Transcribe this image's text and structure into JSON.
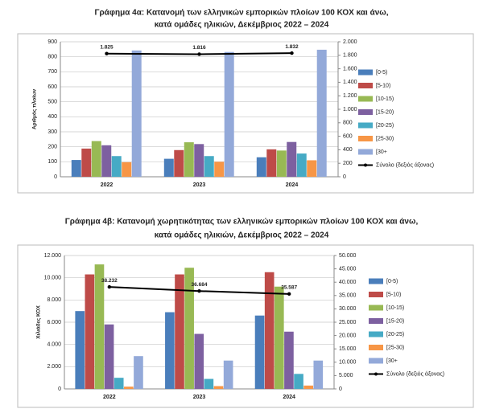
{
  "chart_data": [
    {
      "type": "bar",
      "title": "Γράφημα 4α: Κατανομή των ελληνικών εμπορικών πλοίων 100 ΚΟΧ και άνω,",
      "subtitle": "κατά ομάδες ηλικιών, Δεκέμβριος 2022 – 2024",
      "y_label": "Αριθμός πλοίων",
      "categories": [
        "2022",
        "2023",
        "2024"
      ],
      "ylim": [
        0,
        900
      ],
      "yticks": [
        0,
        100,
        200,
        300,
        400,
        500,
        600,
        700,
        800,
        900
      ],
      "y2lim": [
        0,
        2000
      ],
      "y2ticks": [
        0,
        200,
        400,
        600,
        800,
        {
          "value": 1000,
          "label": "1.000"
        },
        {
          "value": 1200,
          "label": "1.200"
        },
        {
          "value": 1400,
          "label": "1.400"
        },
        {
          "value": 1600,
          "label": "1.600"
        },
        {
          "value": 1800,
          "label": "1.800"
        },
        {
          "value": 2000,
          "label": "2.000"
        }
      ],
      "grid": true,
      "legend": "right",
      "series": [
        {
          "name": "[0-5)",
          "color": "#4a7ebb",
          "values": [
            112,
            120,
            130
          ]
        },
        {
          "name": "[5-10)",
          "color": "#be4b48",
          "values": [
            188,
            178,
            183
          ]
        },
        {
          "name": "[10-15)",
          "color": "#98b954",
          "values": [
            238,
            230,
            175
          ]
        },
        {
          "name": "[15-20)",
          "color": "#7d60a0",
          "values": [
            210,
            218,
            232
          ]
        },
        {
          "name": "[20-25)",
          "color": "#46aac5",
          "values": [
            138,
            138,
            155
          ]
        },
        {
          "name": "[25-30)",
          "color": "#f79646",
          "values": [
            97,
            100,
            110
          ]
        },
        {
          "name": "[30+",
          "color": "#93a9d9",
          "values": [
            842,
            832,
            847
          ]
        },
        {
          "name": "Σύνολο (δεξιός άξονας)",
          "color": "#000000",
          "type": "line",
          "axis": "y2",
          "values": [
            1825,
            1816,
            1832
          ],
          "value_labels": [
            "1.825",
            "1.816",
            "1.832"
          ]
        }
      ]
    },
    {
      "type": "bar",
      "title": "Γράφημα 4β: Κατανομή χωρητικότητας των ελληνικών εμπορικών πλοίων 100 ΚΟΧ και άνω,",
      "subtitle": "κατά ομάδες ηλικιών, Δεκέμβριος 2022 – 2024",
      "y_label": "Χιλιάδες ΚΟΧ",
      "categories": [
        "2022",
        "2023",
        "2024"
      ],
      "ylim": [
        0,
        12000
      ],
      "yticks": [
        0,
        {
          "value": 2000,
          "label": "2.000"
        },
        {
          "value": 4000,
          "label": "4.000"
        },
        {
          "value": 6000,
          "label": "6.000"
        },
        {
          "value": 8000,
          "label": "8.000"
        },
        {
          "value": 10000,
          "label": "10.000"
        },
        {
          "value": 12000,
          "label": "12.000"
        }
      ],
      "y2lim": [
        0,
        50000
      ],
      "y2ticks": [
        0,
        {
          "value": 5000,
          "label": "5.000"
        },
        {
          "value": 10000,
          "label": "10.000"
        },
        {
          "value": 15000,
          "label": "15.000"
        },
        {
          "value": 20000,
          "label": "20.000"
        },
        {
          "value": 25000,
          "label": "25.000"
        },
        {
          "value": 30000,
          "label": "30.000"
        },
        {
          "value": 35000,
          "label": "35.000"
        },
        {
          "value": 40000,
          "label": "40.000"
        },
        {
          "value": 45000,
          "label": "45.000"
        },
        {
          "value": 50000,
          "label": "50.000"
        }
      ],
      "grid": true,
      "legend": "right",
      "series": [
        {
          "name": "[0-5)",
          "color": "#4a7ebb",
          "values": [
            7000,
            6900,
            6600
          ]
        },
        {
          "name": "[5-10)",
          "color": "#be4b48",
          "values": [
            10300,
            10300,
            10500
          ]
        },
        {
          "name": "[10-15)",
          "color": "#98b954",
          "values": [
            11200,
            10900,
            9200
          ]
        },
        {
          "name": "[15-20)",
          "color": "#7d60a0",
          "values": [
            5800,
            4950,
            5150
          ]
        },
        {
          "name": "[20-25)",
          "color": "#46aac5",
          "values": [
            1000,
            900,
            1350
          ]
        },
        {
          "name": "[25-30)",
          "color": "#f79646",
          "values": [
            200,
            250,
            300
          ]
        },
        {
          "name": "[30+",
          "color": "#93a9d9",
          "values": [
            2950,
            2550,
            2550
          ]
        },
        {
          "name": "Σύνολο (δεξιός άξονας)",
          "color": "#000000",
          "type": "line",
          "axis": "y2",
          "values": [
            38232,
            36684,
            35587
          ],
          "value_labels": [
            "38.232",
            "36.684",
            "35.587"
          ]
        }
      ]
    }
  ]
}
